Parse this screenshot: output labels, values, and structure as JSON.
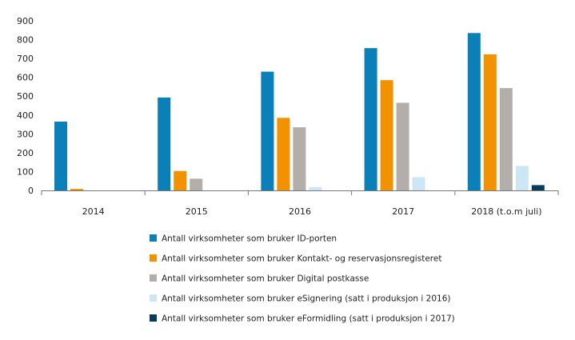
{
  "chart_data": {
    "type": "bar",
    "title": "",
    "xlabel": "",
    "ylabel": "",
    "categories": [
      "2014",
      "2015",
      "2016",
      "2017",
      "2018 (t.o.m juli)"
    ],
    "yticks": [
      0,
      100,
      200,
      300,
      400,
      500,
      600,
      700,
      800,
      900
    ],
    "ylim": [
      0,
      900
    ],
    "grid": false,
    "legend_position": "bottom",
    "series": [
      {
        "name": "Antall virksomheter som bruker ID-porten",
        "color": "#0a7fb8",
        "values": [
          365,
          493,
          630,
          755,
          835
        ]
      },
      {
        "name": "Antall virksomheter som bruker Kontakt- og reservasjonsregisteret",
        "color": "#f39200",
        "values": [
          8,
          103,
          385,
          585,
          722
        ]
      },
      {
        "name": "Antall virksomheter som bruker Digital postkasse",
        "color": "#b3aea9",
        "values": [
          0,
          62,
          335,
          465,
          543
        ]
      },
      {
        "name": "Antall virksomheter som bruker eSignering (satt i produksjon i 2016)",
        "color": "#cde6f6",
        "values": [
          0,
          0,
          18,
          70,
          130
        ]
      },
      {
        "name": "Antall virksomheter som bruker eFormidling (satt i produksjon i 2017)",
        "color": "#083a5c",
        "values": [
          0,
          0,
          0,
          0,
          28
        ]
      }
    ]
  }
}
